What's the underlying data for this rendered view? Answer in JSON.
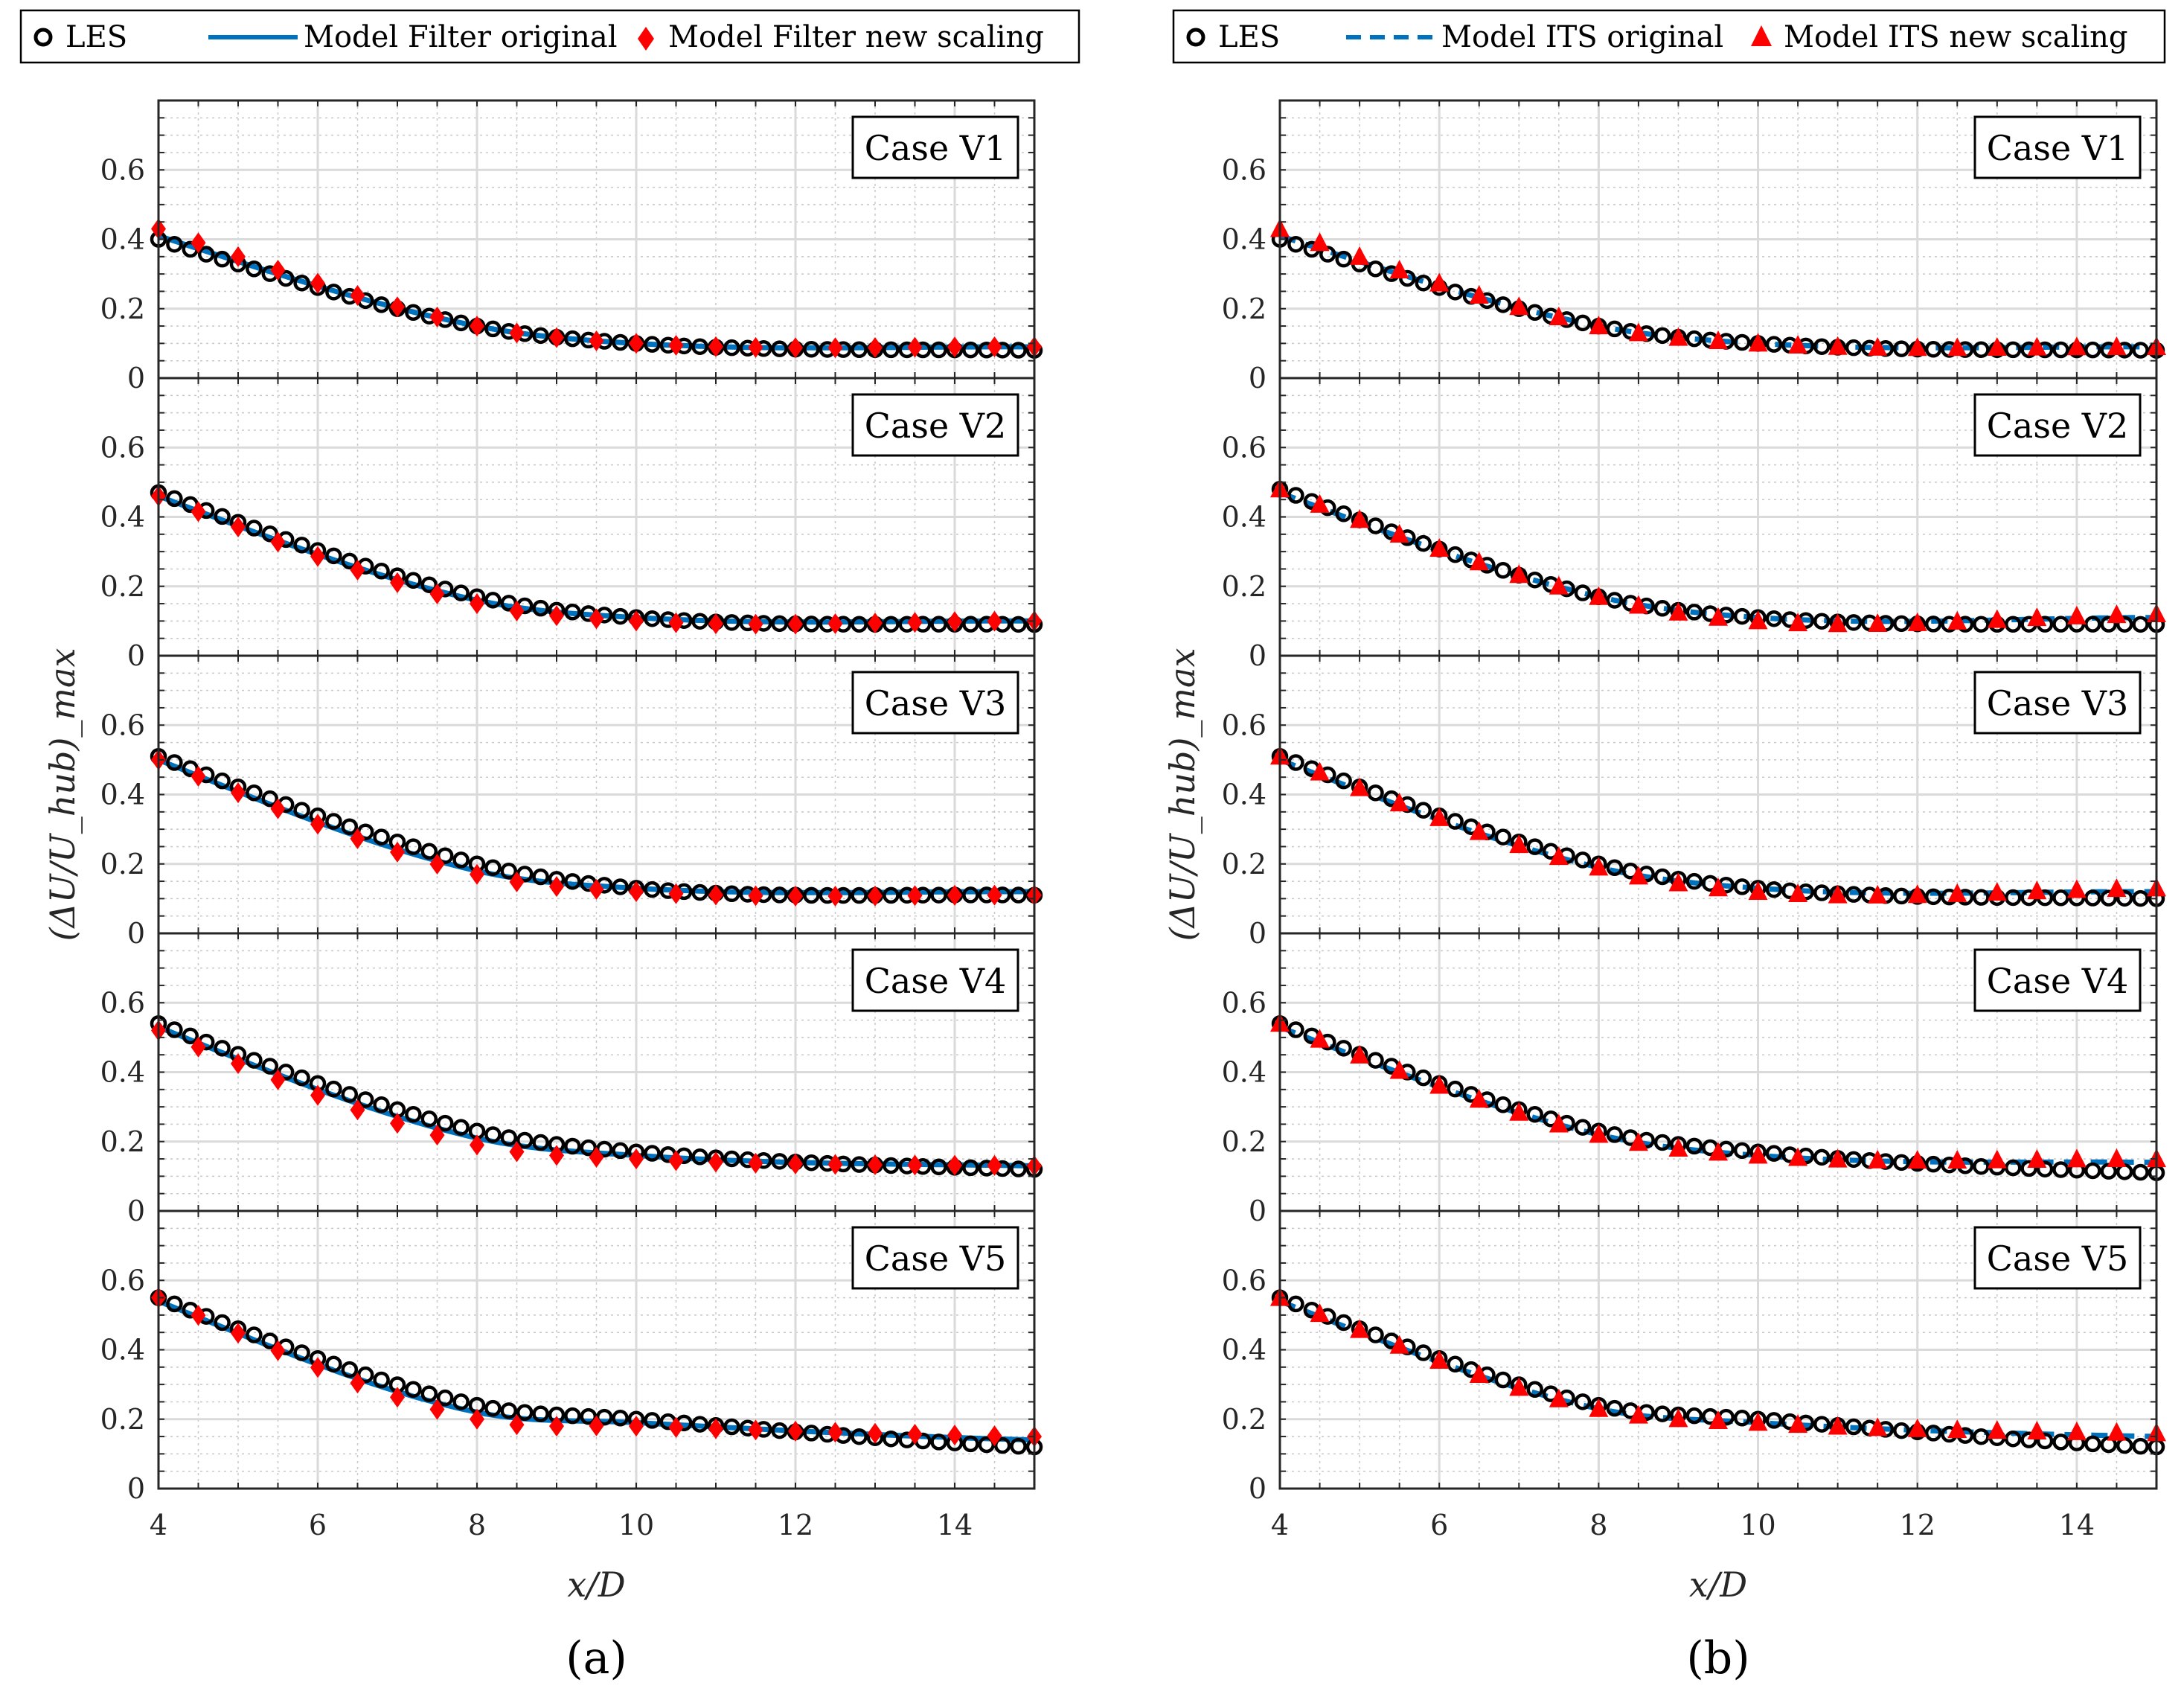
{
  "colors": {
    "les": "#000000",
    "model": "#0072BD",
    "scaled": "#FF0000",
    "grid": "#DADADA",
    "minorGrid": "#C8C8C8"
  },
  "chart_data": [
    {
      "type": "line",
      "panel_label": "(a)",
      "xlabel": "x/D",
      "ylabel": "(ΔU/U_hub)_max",
      "xlim": [
        4,
        15
      ],
      "ylim": [
        0,
        0.8
      ],
      "xticks": [
        "4",
        "6",
        "8",
        "10",
        "12",
        "14"
      ],
      "yticks": [
        "0",
        "0.2",
        "0.4",
        "0.6"
      ],
      "legend": {
        "les": "LES",
        "model": "Model Filter original",
        "scaled": "Model Filter new scaling",
        "model_style": "solid",
        "scaled_marker": "diamond",
        "placement": "top"
      },
      "subplots": [
        {
          "label": "Case V1",
          "les": [
            0.4,
            0.1,
            0.15,
            0.08
          ],
          "model": [
            0.41,
            0.1,
            0.15,
            0.09
          ],
          "scaled": [
            0.43,
            0.1,
            0.15,
            0.09
          ]
        },
        {
          "label": "Case V2",
          "les": [
            0.47,
            0.11,
            0.17,
            0.09
          ],
          "model": [
            0.46,
            0.11,
            0.16,
            0.1
          ],
          "scaled": [
            0.46,
            0.1,
            0.15,
            0.1
          ]
        },
        {
          "label": "Case V3",
          "les": [
            0.51,
            0.13,
            0.2,
            0.11
          ],
          "model": [
            0.5,
            0.13,
            0.18,
            0.12
          ],
          "scaled": [
            0.5,
            0.12,
            0.17,
            0.11
          ]
        },
        {
          "label": "Case V4",
          "les": [
            0.54,
            0.17,
            0.23,
            0.12
          ],
          "model": [
            0.53,
            0.16,
            0.21,
            0.13
          ],
          "scaled": [
            0.52,
            0.15,
            0.19,
            0.13
          ]
        },
        {
          "label": "Case V5",
          "les": [
            0.55,
            0.2,
            0.24,
            0.12
          ],
          "model": [
            0.54,
            0.19,
            0.22,
            0.14
          ],
          "scaled": [
            0.55,
            0.18,
            0.2,
            0.15
          ]
        }
      ]
    },
    {
      "type": "line",
      "panel_label": "(b)",
      "xlabel": "x/D",
      "ylabel": "(ΔU/U_hub)_max",
      "xlim": [
        4,
        15
      ],
      "ylim": [
        0,
        0.8
      ],
      "xticks": [
        "4",
        "6",
        "8",
        "10",
        "12",
        "14"
      ],
      "yticks": [
        "0",
        "0.2",
        "0.4",
        "0.6"
      ],
      "legend": {
        "les": "LES",
        "model": "Model ITS original",
        "scaled": "Model ITS new scaling",
        "model_style": "dashed",
        "scaled_marker": "triangle",
        "placement": "top"
      },
      "subplots": [
        {
          "label": "Case V1",
          "les": [
            0.4,
            0.1,
            0.15,
            0.08
          ],
          "model": [
            0.41,
            0.1,
            0.15,
            0.09
          ],
          "scaled": [
            0.43,
            0.1,
            0.15,
            0.09
          ]
        },
        {
          "label": "Case V2",
          "les": [
            0.48,
            0.11,
            0.17,
            0.09
          ],
          "model": [
            0.47,
            0.11,
            0.17,
            0.11
          ],
          "scaled": [
            0.48,
            0.1,
            0.17,
            0.12
          ]
        },
        {
          "label": "Case V3",
          "les": [
            0.51,
            0.13,
            0.2,
            0.1
          ],
          "model": [
            0.5,
            0.13,
            0.19,
            0.12
          ],
          "scaled": [
            0.51,
            0.12,
            0.19,
            0.13
          ]
        },
        {
          "label": "Case V4",
          "les": [
            0.54,
            0.17,
            0.23,
            0.11
          ],
          "model": [
            0.53,
            0.16,
            0.22,
            0.14
          ],
          "scaled": [
            0.54,
            0.16,
            0.22,
            0.15
          ]
        },
        {
          "label": "Case V5",
          "les": [
            0.55,
            0.2,
            0.24,
            0.12
          ],
          "model": [
            0.54,
            0.19,
            0.23,
            0.15
          ],
          "scaled": [
            0.55,
            0.19,
            0.23,
            0.16
          ]
        }
      ]
    }
  ]
}
